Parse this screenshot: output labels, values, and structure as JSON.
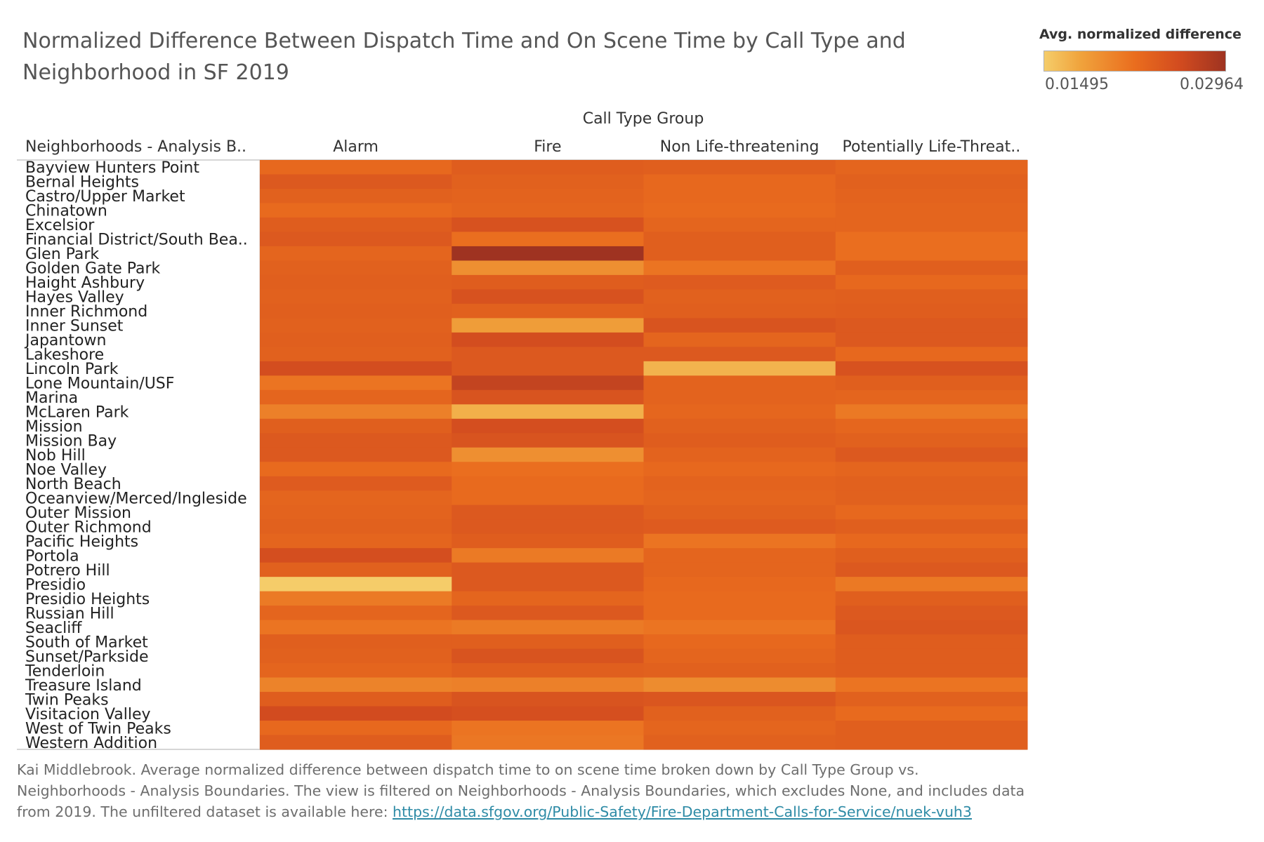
{
  "title": "Normalized Difference Between Dispatch Time and On Scene Time by Call Type and Neighborhood in SF 2019",
  "legend": {
    "title": "Avg. normalized difference",
    "min_label": "0.01495",
    "max_label": "0.02964"
  },
  "caption": {
    "text": "Kai Middlebrook. Average normalized difference between dispatch time to on scene time broken down by Call Type Group vs. Neighborhoods - Analysis Boundaries. The view is filtered on Neighborhoods - Analysis Boundaries, which excludes None, and includes data from 2019. The unfiltered dataset is available here: ",
    "link": "https://data.sfgov.org/Public-Safety/Fire-Department-Calls-for-Service/nuek-vuh3"
  },
  "colors": {
    "scale": [
      "#f5cd6a",
      "#f0a33c",
      "#ea6d1e",
      "#d24b1f",
      "#9e3321"
    ]
  },
  "chart_data": {
    "type": "heatmap",
    "column_header": "Call Type Group",
    "row_header": "Neighborhoods - Analysis B..",
    "columns": [
      "Alarm",
      "Fire",
      "Non Life-threatening",
      "Potentially Life-Threat.."
    ],
    "rows": [
      "Bayview Hunters Point",
      "Bernal Heights",
      "Castro/Upper Market",
      "Chinatown",
      "Excelsior",
      "Financial District/South Bea..",
      "Glen Park",
      "Golden Gate Park",
      "Haight Ashbury",
      "Hayes Valley",
      "Inner Richmond",
      "Inner Sunset",
      "Japantown",
      "Lakeshore",
      "Lincoln Park",
      "Lone Mountain/USF",
      "Marina",
      "McLaren Park",
      "Mission",
      "Mission Bay",
      "Nob Hill",
      "Noe Valley",
      "North Beach",
      "Oceanview/Merced/Ingleside",
      "Outer Mission",
      "Outer Richmond",
      "Pacific Heights",
      "Portola",
      "Potrero Hill",
      "Presidio",
      "Presidio Heights",
      "Russian Hill",
      "Seacliff",
      "South of Market",
      "Sunset/Parkside",
      "Tenderloin",
      "Treasure Island",
      "Twin Peaks",
      "Visitacion Valley",
      "West of Twin Peaks",
      "Western Addition"
    ],
    "color_range": [
      0.01495,
      0.02964
    ],
    "values": [
      [
        0.0228,
        0.024,
        0.0238,
        0.0232
      ],
      [
        0.0245,
        0.0236,
        0.0228,
        0.0236
      ],
      [
        0.0236,
        0.0234,
        0.0228,
        0.0234
      ],
      [
        0.0226,
        0.0232,
        0.0226,
        0.0232
      ],
      [
        0.024,
        0.0252,
        0.0232,
        0.0232
      ],
      [
        0.0245,
        0.0222,
        0.0238,
        0.0222
      ],
      [
        0.0232,
        0.0296,
        0.0238,
        0.0222
      ],
      [
        0.0236,
        0.02,
        0.0218,
        0.0238
      ],
      [
        0.0238,
        0.024,
        0.0242,
        0.0228
      ],
      [
        0.0236,
        0.0252,
        0.0236,
        0.0238
      ],
      [
        0.0238,
        0.0236,
        0.0238,
        0.024
      ],
      [
        0.0236,
        0.019,
        0.025,
        0.0245
      ],
      [
        0.0238,
        0.0258,
        0.0232,
        0.0245
      ],
      [
        0.0236,
        0.0245,
        0.0245,
        0.0228
      ],
      [
        0.0258,
        0.0245,
        0.0172,
        0.0252
      ],
      [
        0.0218,
        0.027,
        0.0234,
        0.0238
      ],
      [
        0.0232,
        0.025,
        0.0234,
        0.0232
      ],
      [
        0.021,
        0.0175,
        0.023,
        0.0215
      ],
      [
        0.0238,
        0.0256,
        0.0236,
        0.023
      ],
      [
        0.0245,
        0.025,
        0.024,
        0.0236
      ],
      [
        0.0245,
        0.02,
        0.0234,
        0.0245
      ],
      [
        0.0226,
        0.0222,
        0.0228,
        0.0232
      ],
      [
        0.0242,
        0.0226,
        0.0234,
        0.0236
      ],
      [
        0.0232,
        0.0226,
        0.0232,
        0.0236
      ],
      [
        0.0234,
        0.0245,
        0.0236,
        0.0228
      ],
      [
        0.0236,
        0.0245,
        0.0242,
        0.0238
      ],
      [
        0.0232,
        0.024,
        0.0218,
        0.0228
      ],
      [
        0.0256,
        0.0214,
        0.0232,
        0.0238
      ],
      [
        0.0236,
        0.0245,
        0.0232,
        0.0245
      ],
      [
        0.015,
        0.0245,
        0.0228,
        0.0215
      ],
      [
        0.0214,
        0.0232,
        0.0226,
        0.0238
      ],
      [
        0.0232,
        0.0245,
        0.0226,
        0.0245
      ],
      [
        0.0218,
        0.0214,
        0.0218,
        0.0248
      ],
      [
        0.0238,
        0.0238,
        0.0228,
        0.024
      ],
      [
        0.0236,
        0.025,
        0.0232,
        0.024
      ],
      [
        0.0232,
        0.0238,
        0.0236,
        0.024
      ],
      [
        0.0208,
        0.021,
        0.0202,
        0.0218
      ],
      [
        0.024,
        0.025,
        0.0248,
        0.0236
      ],
      [
        0.026,
        0.0255,
        0.0236,
        0.0226
      ],
      [
        0.0228,
        0.0218,
        0.0232,
        0.0238
      ],
      [
        0.024,
        0.0216,
        0.0236,
        0.0238
      ]
    ]
  }
}
